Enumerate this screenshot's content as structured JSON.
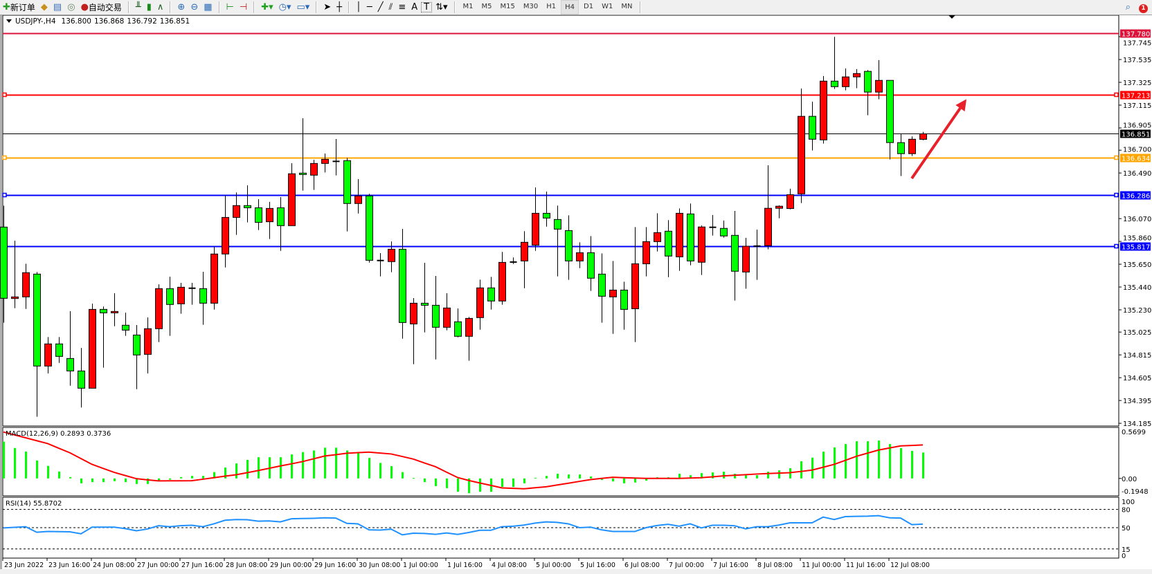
{
  "toolbar": {
    "new_order": "新订单",
    "auto_trading": "自动交易",
    "icons": [
      "new-order-icon",
      "history-center-icon",
      "data-window-icon",
      "signals-icon",
      "auto-trading-icon",
      "bar-chart-icon",
      "candlestick-icon",
      "line-chart-icon",
      "zoom-in-icon",
      "zoom-out-icon",
      "tile-windows-icon",
      "chart-shift-icon",
      "autoscroll-icon",
      "indicators-icon",
      "periods-icon",
      "templates-icon",
      "cursor-icon",
      "crosshair-icon",
      "vertical-line-icon",
      "horizontal-line-icon",
      "trendline-icon",
      "equidistant-channel-icon",
      "fibonacci-icon",
      "text-icon",
      "text-label-icon",
      "arrows-icon",
      "search-icon",
      "notifications-icon"
    ],
    "text_tool": "A",
    "label_tool": "T",
    "timeframes": [
      "M1",
      "M5",
      "M15",
      "M30",
      "H1",
      "H4",
      "D1",
      "W1",
      "MN"
    ],
    "active_timeframe": "H4",
    "notification_count": "1"
  },
  "header": {
    "symbol": "USDJPY-,H4",
    "open": "136.800",
    "high": "136.868",
    "low": "136.792",
    "close": "136.851"
  },
  "chart_data": {
    "type": "candlestick",
    "symbol": "USDJPY-",
    "timeframe": "H4",
    "ylim": [
      134.16,
      137.943
    ],
    "bull_color": "#ff0000",
    "bear_color": "#00ff00",
    "doji_color": "#000000",
    "price_ticks": [
      "137.745",
      "137.535",
      "137.325",
      "137.115",
      "136.905",
      "136.700",
      "136.490",
      "136.070",
      "135.860",
      "135.650",
      "135.440",
      "135.230",
      "135.025",
      "134.815",
      "134.605",
      "134.395",
      "134.185"
    ],
    "time_labels": [
      "23 Jun 2022",
      "23 Jun 16:00",
      "24 Jun 08:00",
      "27 Jun 00:00",
      "27 Jun 16:00",
      "28 Jun 08:00",
      "29 Jun 00:00",
      "29 Jun 16:00",
      "30 Jun 08:00",
      "1 Jul 00:00",
      "1 Jul 16:00",
      "4 Jul 08:00",
      "5 Jul 00:00",
      "5 Jul 16:00",
      "6 Jul 08:00",
      "7 Jul 00:00",
      "7 Jul 16:00",
      "8 Jul 08:00",
      "11 Jul 00:00",
      "11 Jul 16:00",
      "12 Jul 08:00"
    ],
    "horizontal_lines": [
      {
        "price": 137.78,
        "label": "137.780",
        "color": "#dc143c",
        "marker": false
      },
      {
        "price": 137.213,
        "label": "137.213",
        "color": "#ff0000",
        "marker": true
      },
      {
        "price": 136.851,
        "label": "136.851",
        "color": "#000000",
        "marker": false,
        "bid": true
      },
      {
        "price": 136.634,
        "label": "136.634",
        "color": "#ffa500",
        "marker": true
      },
      {
        "price": 136.286,
        "label": "136.286",
        "color": "#0000ff",
        "marker": true
      },
      {
        "price": 135.817,
        "label": "135.817",
        "color": "#0000ff",
        "marker": true
      }
    ],
    "arrow": {
      "from": {
        "time": "12 Jul 16:00",
        "price": 136.44
      },
      "to": {
        "time": "13 Jul 00:00",
        "price": 137.17
      },
      "color": "#e8202a"
    },
    "columns": [
      "time",
      "open",
      "high",
      "low",
      "close"
    ],
    "candles": [
      [
        "23 Jun 00:00",
        135.992,
        136.189,
        135.111,
        135.336
      ],
      [
        "23 Jun 04:00",
        135.334,
        135.867,
        135.245,
        135.349
      ],
      [
        "23 Jun 08:00",
        135.349,
        135.654,
        135.238,
        135.572
      ],
      [
        "23 Jun 12:00",
        135.559,
        135.578,
        134.245,
        134.712
      ],
      [
        "23 Jun 16:00",
        134.712,
        134.979,
        134.644,
        134.916
      ],
      [
        "23 Jun 20:00",
        134.916,
        134.979,
        134.741,
        134.801
      ],
      [
        "24 Jun 00:00",
        134.782,
        135.217,
        134.531,
        134.667
      ],
      [
        "24 Jun 04:00",
        134.667,
        134.879,
        134.33,
        134.508
      ],
      [
        "24 Jun 08:00",
        134.508,
        135.287,
        134.508,
        135.234
      ],
      [
        "24 Jun 12:00",
        135.234,
        135.26,
        134.697,
        135.202
      ],
      [
        "24 Jun 16:00",
        135.202,
        135.383,
        135.079,
        135.215
      ],
      [
        "24 Jun 20:00",
        135.088,
        135.204,
        134.99,
        135.043
      ],
      [
        "27 Jun 00:00",
        134.998,
        135.09,
        134.499,
        134.814
      ],
      [
        "27 Jun 04:00",
        134.82,
        135.16,
        134.644,
        135.056
      ],
      [
        "27 Jun 08:00",
        135.056,
        135.465,
        134.933,
        135.425
      ],
      [
        "27 Jun 12:00",
        135.425,
        135.535,
        134.99,
        135.279
      ],
      [
        "27 Jun 16:00",
        135.285,
        135.478,
        135.194,
        135.438
      ],
      [
        "27 Jun 20:00",
        135.432,
        135.478,
        135.277,
        135.429
      ],
      [
        "28 Jun 00:00",
        135.425,
        135.58,
        135.092,
        135.291
      ],
      [
        "28 Jun 04:00",
        135.291,
        135.812,
        135.232,
        135.744
      ],
      [
        "28 Jun 08:00",
        135.744,
        136.285,
        135.62,
        136.081
      ],
      [
        "28 Jun 12:00",
        136.081,
        136.311,
        135.92,
        136.19
      ],
      [
        "28 Jun 16:00",
        136.19,
        136.376,
        136.035,
        136.17
      ],
      [
        "28 Jun 20:00",
        136.17,
        136.249,
        135.965,
        136.035
      ],
      [
        "29 Jun 00:00",
        136.041,
        136.224,
        135.882,
        136.164
      ],
      [
        "29 Jun 04:00",
        136.17,
        136.268,
        135.773,
        136.005
      ],
      [
        "29 Jun 08:00",
        136.005,
        136.58,
        136.005,
        136.483
      ],
      [
        "29 Jun 12:00",
        136.489,
        136.994,
        136.328,
        136.476
      ],
      [
        "29 Jun 16:00",
        136.47,
        136.612,
        136.334,
        136.578
      ],
      [
        "29 Jun 20:00",
        136.578,
        136.669,
        136.495,
        136.616
      ],
      [
        "30 Jun 00:00",
        136.6,
        136.803,
        136.468,
        136.597
      ],
      [
        "30 Jun 04:00",
        136.604,
        136.629,
        135.952,
        136.209
      ],
      [
        "30 Jun 08:00",
        136.209,
        136.434,
        136.117,
        136.279
      ],
      [
        "30 Jun 12:00",
        136.279,
        136.298,
        135.665,
        135.686
      ],
      [
        "30 Jun 16:00",
        135.685,
        135.752,
        135.538,
        135.684
      ],
      [
        "30 Jun 20:00",
        135.674,
        135.86,
        135.576,
        135.788
      ],
      [
        "1 Jul 00:00",
        135.788,
        135.975,
        134.964,
        135.113
      ],
      [
        "1 Jul 04:00",
        135.1,
        135.338,
        134.729,
        135.291
      ],
      [
        "1 Jul 08:00",
        135.291,
        135.663,
        135.022,
        135.272
      ],
      [
        "1 Jul 12:00",
        135.272,
        135.542,
        134.773,
        135.069
      ],
      [
        "1 Jul 16:00",
        135.069,
        135.383,
        135.041,
        135.247
      ],
      [
        "1 Jul 20:00",
        135.12,
        135.243,
        134.977,
        134.986
      ],
      [
        "4 Jul 00:00",
        134.986,
        135.164,
        134.761,
        135.151
      ],
      [
        "4 Jul 04:00",
        135.158,
        135.508,
        135.047,
        135.432
      ],
      [
        "4 Jul 08:00",
        135.432,
        135.533,
        135.232,
        135.311
      ],
      [
        "4 Jul 12:00",
        135.311,
        135.763,
        135.277,
        135.667
      ],
      [
        "4 Jul 16:00",
        135.671,
        135.712,
        135.652,
        135.67
      ],
      [
        "4 Jul 20:00",
        135.68,
        135.954,
        135.429,
        135.852
      ],
      [
        "5 Jul 00:00",
        135.826,
        136.357,
        135.773,
        136.119
      ],
      [
        "5 Jul 04:00",
        136.119,
        136.319,
        135.996,
        136.075
      ],
      [
        "5 Jul 08:00",
        136.062,
        136.19,
        135.538,
        135.973
      ],
      [
        "5 Jul 12:00",
        135.96,
        136.1,
        135.506,
        135.68
      ],
      [
        "5 Jul 16:00",
        135.68,
        135.852,
        135.614,
        135.756
      ],
      [
        "5 Jul 20:00",
        135.756,
        135.909,
        135.404,
        135.521
      ],
      [
        "6 Jul 00:00",
        135.559,
        135.75,
        135.111,
        135.355
      ],
      [
        "6 Jul 04:00",
        135.349,
        135.68,
        135.009,
        135.412
      ],
      [
        "6 Jul 08:00",
        135.412,
        135.489,
        135.047,
        135.234
      ],
      [
        "6 Jul 12:00",
        135.24,
        135.992,
        134.933,
        135.654
      ],
      [
        "6 Jul 16:00",
        135.654,
        135.992,
        135.538,
        135.858
      ],
      [
        "6 Jul 20:00",
        135.858,
        136.119,
        135.767,
        135.941
      ],
      [
        "7 Jul 00:00",
        135.954,
        136.056,
        135.531,
        135.725
      ],
      [
        "7 Jul 04:00",
        135.718,
        136.164,
        135.589,
        136.119
      ],
      [
        "7 Jul 08:00",
        136.113,
        136.209,
        135.64,
        135.68
      ],
      [
        "7 Jul 12:00",
        135.668,
        136.007,
        135.551,
        135.993
      ],
      [
        "7 Jul 16:00",
        135.991,
        136.103,
        135.914,
        135.99
      ],
      [
        "7 Jul 20:00",
        135.98,
        136.052,
        135.895,
        135.91
      ],
      [
        "8 Jul 00:00",
        135.916,
        136.141,
        135.315,
        135.585
      ],
      [
        "8 Jul 04:00",
        135.578,
        135.893,
        135.424,
        135.816
      ],
      [
        "8 Jul 08:00",
        135.818,
        135.969,
        135.506,
        135.817
      ],
      [
        "8 Jul 12:00",
        135.821,
        136.561,
        135.787,
        136.165
      ],
      [
        "8 Jul 16:00",
        136.165,
        136.192,
        136.073,
        136.184
      ],
      [
        "8 Jul 20:00",
        136.163,
        136.345,
        136.156,
        136.29
      ],
      [
        "11 Jul 00:00",
        136.298,
        137.268,
        136.213,
        137.012
      ],
      [
        "11 Jul 04:00",
        137.012,
        137.147,
        136.697,
        136.801
      ],
      [
        "11 Jul 08:00",
        136.795,
        137.383,
        136.761,
        137.336
      ],
      [
        "11 Jul 12:00",
        137.336,
        137.744,
        137.264,
        137.285
      ],
      [
        "11 Jul 16:00",
        137.285,
        137.453,
        137.251,
        137.375
      ],
      [
        "11 Jul 20:00",
        137.375,
        137.447,
        137.271,
        137.406
      ],
      [
        "12 Jul 00:00",
        137.426,
        137.438,
        137.022,
        137.235
      ],
      [
        "12 Jul 04:00",
        137.235,
        137.53,
        137.169,
        137.343
      ],
      [
        "12 Jul 08:00",
        137.343,
        137.343,
        136.615,
        136.77
      ],
      [
        "12 Jul 12:00",
        136.77,
        136.852,
        136.462,
        136.668
      ],
      [
        "12 Jul 16:00",
        136.668,
        136.827,
        136.646,
        136.801
      ],
      [
        "12 Jul 20:00",
        136.8,
        136.868,
        136.792,
        136.851
      ]
    ],
    "macd": {
      "title": "MACD(12,26,9) 0.2893 0.3736",
      "ylim": [
        -0.1948,
        0.5699
      ],
      "axis_labels": [
        "0.5699",
        "0.00",
        "-0.1948"
      ],
      "histogram_color": "#00ff00",
      "signal_color": "#ff0000",
      "histogram": [
        0.41,
        0.34,
        0.3,
        0.2,
        0.14,
        0.077,
        0.015,
        -0.055,
        -0.041,
        -0.041,
        -0.031,
        -0.041,
        -0.062,
        -0.062,
        -0.023,
        -0.014,
        0.015,
        0.028,
        0.028,
        0.07,
        0.121,
        0.167,
        0.207,
        0.237,
        0.237,
        0.237,
        0.268,
        0.294,
        0.312,
        0.343,
        0.343,
        0.312,
        0.288,
        0.229,
        0.173,
        0.137,
        0.07,
        0.005,
        -0.041,
        -0.086,
        -0.109,
        -0.149,
        -0.165,
        -0.149,
        -0.149,
        -0.096,
        -0.096,
        -0.055,
        0.007,
        0.028,
        0.052,
        0.044,
        0.044,
        0.021,
        -0.018,
        -0.034,
        -0.055,
        -0.046,
        -0.025,
        0.013,
        0.013,
        0.052,
        0.036,
        0.059,
        0.067,
        0.075,
        0.052,
        0.036,
        0.036,
        0.075,
        0.09,
        0.114,
        0.191,
        0.232,
        0.299,
        0.346,
        0.384,
        0.415,
        0.415,
        0.423,
        0.384,
        0.338,
        0.307,
        0.2893
      ],
      "signal": [
        0.518,
        0.486,
        0.454,
        0.421,
        0.389,
        0.337,
        0.286,
        0.221,
        0.157,
        0.112,
        0.067,
        0.032,
        -0.003,
        -0.016,
        -0.028,
        -0.027,
        -0.027,
        -0.026,
        -0.009,
        0.008,
        0.025,
        0.041,
        0.064,
        0.088,
        0.113,
        0.139,
        0.163,
        0.188,
        0.219,
        0.25,
        0.265,
        0.281,
        0.288,
        0.294,
        0.283,
        0.273,
        0.245,
        0.216,
        0.173,
        0.131,
        0.07,
        0.01,
        -0.023,
        -0.051,
        -0.078,
        -0.106,
        -0.111,
        -0.116,
        -0.104,
        -0.093,
        -0.073,
        -0.054,
        -0.033,
        -0.013,
        0,
        0.013,
        0.008,
        0.004,
        0,
        0,
        0,
        0,
        0.004,
        0.008,
        0.018,
        0.028,
        0.035,
        0.042,
        0.049,
        0.054,
        0.059,
        0.064,
        0.078,
        0.093,
        0.125,
        0.157,
        0.202,
        0.247,
        0.282,
        0.317,
        0.34,
        0.363,
        0.368,
        0.3736
      ]
    },
    "rsi": {
      "title": "RSI(14) 55.8702",
      "ylim": [
        0,
        100
      ],
      "levels": [
        80,
        50,
        15
      ],
      "axis_labels": [
        "100",
        "80",
        "50",
        "15",
        "0"
      ],
      "color": "#1e90ff",
      "values": [
        49.6,
        50.5,
        51.6,
        42.5,
        43.7,
        43.5,
        43.2,
        40,
        50.8,
        50.8,
        50.8,
        48.4,
        44.9,
        47.8,
        53.2,
        51.6,
        53.2,
        54,
        51.6,
        56.3,
        62.2,
        63.4,
        63,
        60.7,
        61.1,
        59.5,
        64.6,
        65,
        65.4,
        66.2,
        65.8,
        57.1,
        56.3,
        46.4,
        46,
        47.6,
        38.2,
        40.9,
        40.5,
        39,
        41.3,
        39,
        42,
        45.7,
        45.7,
        51.6,
        52.4,
        54.3,
        57.5,
        59.5,
        58.7,
        56.3,
        50,
        50.8,
        46.4,
        43.7,
        43.7,
        43.7,
        50,
        53.5,
        55.5,
        52.4,
        56.3,
        49.6,
        54,
        54,
        53.2,
        48,
        51.6,
        51.6,
        54.3,
        57.9,
        57.9,
        57.9,
        67.4,
        63.4,
        68.2,
        68.6,
        68.9,
        69.7,
        66.2,
        65.8,
        55,
        55.87
      ]
    }
  }
}
